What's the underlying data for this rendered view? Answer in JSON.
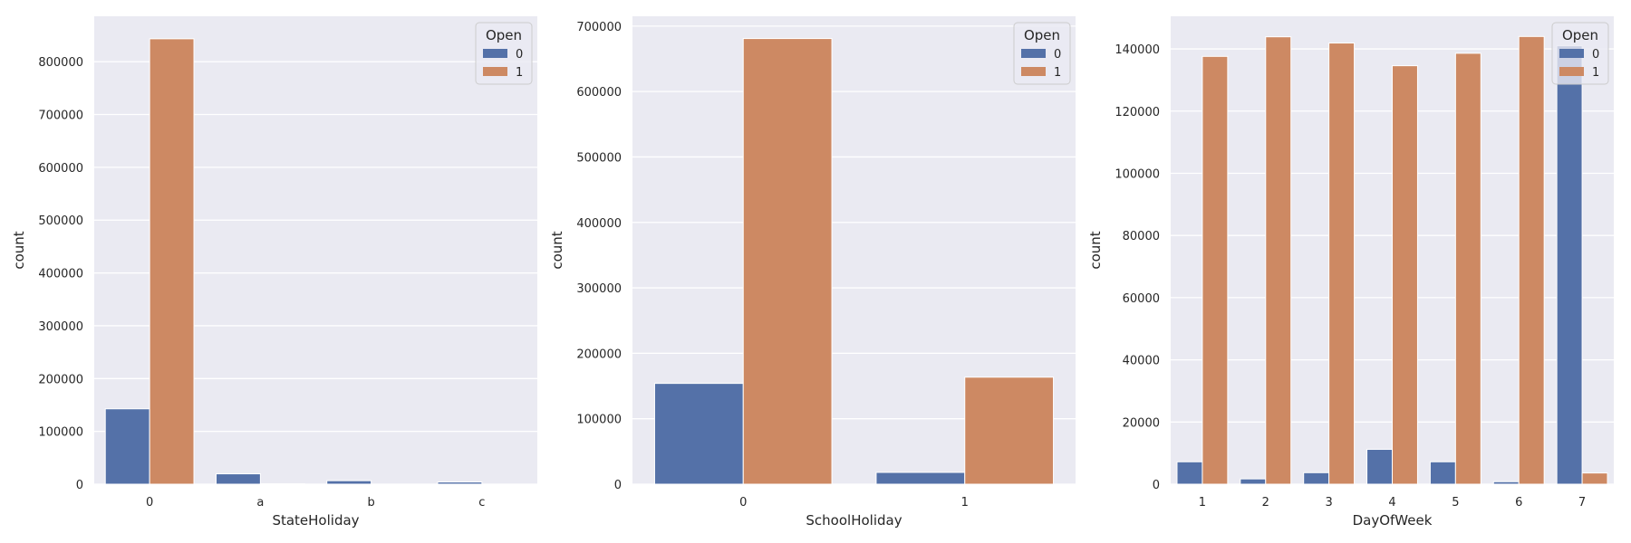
{
  "palette": {
    "series0": "#5471a8",
    "series1": "#cd8963",
    "plot_bg": "#eaeaf2",
    "grid": "#ffffff",
    "text": "#262626"
  },
  "chart_data": [
    {
      "type": "bar",
      "xlabel": "StateHoliday",
      "ylabel": "count",
      "categories": [
        "0",
        "a",
        "b",
        "c"
      ],
      "ylim": [
        0,
        886000
      ],
      "yticks": [
        0,
        100000,
        200000,
        300000,
        400000,
        500000,
        600000,
        700000,
        800000
      ],
      "legend": {
        "title": "Open",
        "position": "top-right"
      },
      "grid": true,
      "series": [
        {
          "name": "0",
          "values": [
            142700,
            19600,
            6600,
            4100
          ]
        },
        {
          "name": "1",
          "values": [
            843400,
            700,
            150,
            70
          ]
        }
      ]
    },
    {
      "type": "bar",
      "xlabel": "SchoolHoliday",
      "ylabel": "count",
      "categories": [
        "0",
        "1"
      ],
      "ylim": [
        0,
        715000
      ],
      "yticks": [
        0,
        100000,
        200000,
        300000,
        400000,
        500000,
        600000,
        700000
      ],
      "legend": {
        "title": "Open",
        "position": "top-right"
      },
      "grid": true,
      "series": [
        {
          "name": "0",
          "values": [
            154000,
            18000
          ]
        },
        {
          "name": "1",
          "values": [
            681000,
            163500
          ]
        }
      ]
    },
    {
      "type": "bar",
      "xlabel": "DayOfWeek",
      "ylabel": "count",
      "categories": [
        "1",
        "2",
        "3",
        "4",
        "5",
        "6",
        "7"
      ],
      "ylim": [
        0,
        150500
      ],
      "yticks": [
        0,
        20000,
        40000,
        60000,
        80000,
        100000,
        120000,
        140000
      ],
      "legend": {
        "title": "Open",
        "position": "top-right"
      },
      "grid": true,
      "series": [
        {
          "name": "0",
          "values": [
            7200,
            1700,
            3700,
            11200,
            7200,
            800,
            141000
          ]
        },
        {
          "name": "1",
          "values": [
            137600,
            143900,
            141900,
            134600,
            138600,
            144000,
            3600
          ]
        }
      ]
    }
  ]
}
